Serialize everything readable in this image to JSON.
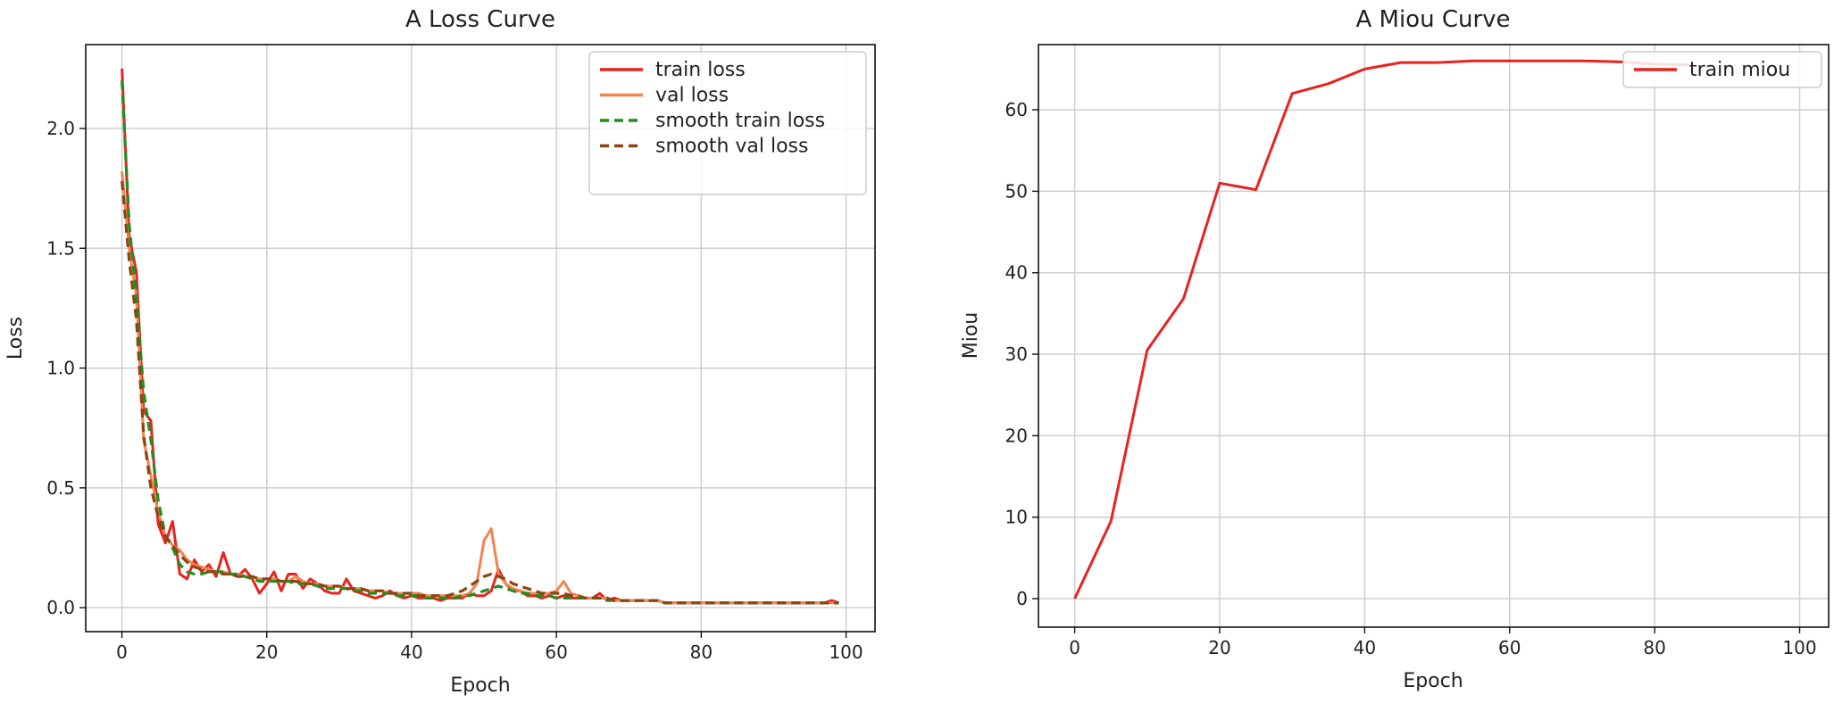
{
  "chart_data": [
    {
      "type": "line",
      "title": "A Loss Curve",
      "xlabel": "Epoch",
      "ylabel": "Loss",
      "xlim": [
        -5,
        104
      ],
      "ylim": [
        -0.1,
        2.35
      ],
      "xticks": [
        0,
        20,
        40,
        60,
        80,
        100
      ],
      "yticks": [
        0.0,
        0.5,
        1.0,
        1.5,
        2.0
      ],
      "ytick_labels": [
        "0.0",
        "0.5",
        "1.0",
        "1.5",
        "2.0"
      ],
      "grid": true,
      "legend_position": "top-right",
      "series": [
        {
          "name": "train loss",
          "color": "#e8231f",
          "style": "solid",
          "x": [
            0,
            1,
            2,
            3,
            4,
            5,
            6,
            7,
            8,
            9,
            10,
            11,
            12,
            13,
            14,
            15,
            16,
            17,
            18,
            19,
            20,
            21,
            22,
            23,
            24,
            25,
            26,
            27,
            28,
            29,
            30,
            31,
            32,
            33,
            34,
            35,
            36,
            37,
            38,
            39,
            40,
            41,
            42,
            43,
            44,
            45,
            46,
            47,
            48,
            49,
            50,
            51,
            52,
            53,
            54,
            55,
            56,
            57,
            58,
            59,
            60,
            61,
            62,
            63,
            64,
            65,
            66,
            67,
            68,
            69,
            70,
            71,
            72,
            73,
            74,
            75,
            76,
            77,
            78,
            79,
            80,
            81,
            82,
            83,
            84,
            85,
            86,
            87,
            88,
            89,
            90,
            91,
            92,
            93,
            94,
            95,
            96,
            97,
            98,
            99
          ],
          "values": [
            2.25,
            1.55,
            1.4,
            0.82,
            0.78,
            0.35,
            0.27,
            0.36,
            0.14,
            0.12,
            0.2,
            0.15,
            0.18,
            0.13,
            0.23,
            0.14,
            0.13,
            0.16,
            0.12,
            0.06,
            0.1,
            0.15,
            0.07,
            0.14,
            0.14,
            0.08,
            0.12,
            0.1,
            0.07,
            0.06,
            0.06,
            0.12,
            0.07,
            0.06,
            0.05,
            0.04,
            0.05,
            0.07,
            0.05,
            0.04,
            0.05,
            0.04,
            0.04,
            0.04,
            0.03,
            0.04,
            0.04,
            0.04,
            0.06,
            0.05,
            0.05,
            0.07,
            0.16,
            0.1,
            0.07,
            0.07,
            0.05,
            0.05,
            0.04,
            0.05,
            0.04,
            0.05,
            0.04,
            0.04,
            0.04,
            0.04,
            0.06,
            0.03,
            0.04,
            0.03,
            0.03,
            0.03,
            0.03,
            0.03,
            0.03,
            0.02,
            0.02,
            0.02,
            0.02,
            0.02,
            0.02,
            0.02,
            0.02,
            0.02,
            0.02,
            0.02,
            0.02,
            0.02,
            0.02,
            0.02,
            0.02,
            0.02,
            0.02,
            0.02,
            0.02,
            0.02,
            0.02,
            0.02,
            0.03,
            0.02
          ]
        },
        {
          "name": "val loss",
          "color": "#f4834f",
          "style": "solid",
          "x": [
            0,
            1,
            2,
            3,
            4,
            5,
            6,
            7,
            8,
            9,
            10,
            11,
            12,
            13,
            14,
            15,
            16,
            17,
            18,
            19,
            20,
            21,
            22,
            23,
            24,
            25,
            26,
            27,
            28,
            29,
            30,
            31,
            32,
            33,
            34,
            35,
            36,
            37,
            38,
            39,
            40,
            41,
            42,
            43,
            44,
            45,
            46,
            47,
            48,
            49,
            50,
            51,
            52,
            53,
            54,
            55,
            56,
            57,
            58,
            59,
            60,
            61,
            62,
            63,
            64,
            65,
            66,
            67,
            68,
            69,
            70,
            71,
            72,
            73,
            74,
            75,
            76,
            77,
            78,
            79,
            80,
            81,
            82,
            83,
            84,
            85,
            86,
            87,
            88,
            89,
            90,
            91,
            92,
            93,
            94,
            95,
            96,
            97,
            98,
            99
          ],
          "values": [
            1.82,
            1.5,
            1.3,
            0.7,
            0.55,
            0.4,
            0.3,
            0.26,
            0.24,
            0.2,
            0.18,
            0.17,
            0.16,
            0.15,
            0.15,
            0.14,
            0.14,
            0.13,
            0.13,
            0.12,
            0.12,
            0.12,
            0.11,
            0.11,
            0.13,
            0.11,
            0.1,
            0.1,
            0.09,
            0.09,
            0.09,
            0.08,
            0.08,
            0.08,
            0.07,
            0.07,
            0.07,
            0.06,
            0.06,
            0.06,
            0.06,
            0.06,
            0.05,
            0.05,
            0.05,
            0.05,
            0.05,
            0.05,
            0.06,
            0.1,
            0.28,
            0.33,
            0.14,
            0.1,
            0.08,
            0.07,
            0.06,
            0.06,
            0.06,
            0.06,
            0.07,
            0.11,
            0.06,
            0.05,
            0.04,
            0.04,
            0.04,
            0.04,
            0.03,
            0.03,
            0.03,
            0.03,
            0.03,
            0.03,
            0.03,
            0.02,
            0.02,
            0.02,
            0.02,
            0.02,
            0.02,
            0.02,
            0.02,
            0.02,
            0.02,
            0.02,
            0.02,
            0.02,
            0.02,
            0.02,
            0.02,
            0.02,
            0.02,
            0.02,
            0.02,
            0.02,
            0.02,
            0.02,
            0.02,
            0.02
          ]
        },
        {
          "name": "smooth train loss",
          "color": "#1f8f1f",
          "style": "dashed",
          "x": [
            0,
            1,
            2,
            3,
            4,
            5,
            6,
            7,
            8,
            9,
            10,
            11,
            12,
            13,
            14,
            15,
            16,
            17,
            18,
            19,
            20,
            21,
            22,
            23,
            24,
            25,
            26,
            27,
            28,
            29,
            30,
            31,
            32,
            33,
            34,
            35,
            36,
            37,
            38,
            39,
            40,
            41,
            42,
            43,
            44,
            45,
            46,
            47,
            48,
            49,
            50,
            51,
            52,
            53,
            54,
            55,
            56,
            57,
            58,
            59,
            60,
            61,
            62,
            63,
            64,
            65,
            66,
            67,
            68,
            69,
            70,
            71,
            72,
            73,
            74,
            75,
            76,
            77,
            78,
            79,
            80,
            81,
            82,
            83,
            84,
            85,
            86,
            87,
            88,
            89,
            90,
            91,
            92,
            93,
            94,
            95,
            96,
            97,
            98,
            99
          ],
          "values": [
            2.2,
            1.6,
            1.3,
            0.9,
            0.7,
            0.45,
            0.3,
            0.25,
            0.18,
            0.15,
            0.14,
            0.14,
            0.15,
            0.15,
            0.15,
            0.14,
            0.14,
            0.13,
            0.12,
            0.11,
            0.11,
            0.11,
            0.11,
            0.11,
            0.1,
            0.1,
            0.1,
            0.09,
            0.08,
            0.08,
            0.08,
            0.08,
            0.07,
            0.07,
            0.06,
            0.06,
            0.06,
            0.06,
            0.05,
            0.05,
            0.05,
            0.05,
            0.04,
            0.04,
            0.04,
            0.04,
            0.04,
            0.05,
            0.05,
            0.06,
            0.07,
            0.08,
            0.09,
            0.08,
            0.07,
            0.06,
            0.06,
            0.05,
            0.05,
            0.05,
            0.04,
            0.04,
            0.04,
            0.04,
            0.04,
            0.04,
            0.04,
            0.03,
            0.03,
            0.03,
            0.03,
            0.03,
            0.03,
            0.03,
            0.03,
            0.02,
            0.02,
            0.02,
            0.02,
            0.02,
            0.02,
            0.02,
            0.02,
            0.02,
            0.02,
            0.02,
            0.02,
            0.02,
            0.02,
            0.02,
            0.02,
            0.02,
            0.02,
            0.02,
            0.02,
            0.02,
            0.02,
            0.02,
            0.02,
            0.02
          ]
        },
        {
          "name": "smooth val loss",
          "color": "#8b4513",
          "style": "dashed",
          "x": [
            0,
            1,
            2,
            3,
            4,
            5,
            6,
            7,
            8,
            9,
            10,
            11,
            12,
            13,
            14,
            15,
            16,
            17,
            18,
            19,
            20,
            21,
            22,
            23,
            24,
            25,
            26,
            27,
            28,
            29,
            30,
            31,
            32,
            33,
            34,
            35,
            36,
            37,
            38,
            39,
            40,
            41,
            42,
            43,
            44,
            45,
            46,
            47,
            48,
            49,
            50,
            51,
            52,
            53,
            54,
            55,
            56,
            57,
            58,
            59,
            60,
            61,
            62,
            63,
            64,
            65,
            66,
            67,
            68,
            69,
            70,
            71,
            72,
            73,
            74,
            75,
            76,
            77,
            78,
            79,
            80,
            81,
            82,
            83,
            84,
            85,
            86,
            87,
            88,
            89,
            90,
            91,
            92,
            93,
            94,
            95,
            96,
            97,
            98,
            99
          ],
          "values": [
            1.78,
            1.45,
            1.2,
            0.72,
            0.5,
            0.38,
            0.3,
            0.26,
            0.22,
            0.19,
            0.17,
            0.16,
            0.15,
            0.15,
            0.14,
            0.14,
            0.13,
            0.13,
            0.13,
            0.12,
            0.12,
            0.12,
            0.11,
            0.11,
            0.11,
            0.1,
            0.1,
            0.1,
            0.09,
            0.09,
            0.09,
            0.08,
            0.08,
            0.08,
            0.07,
            0.07,
            0.07,
            0.06,
            0.06,
            0.06,
            0.06,
            0.05,
            0.05,
            0.05,
            0.05,
            0.05,
            0.06,
            0.07,
            0.09,
            0.11,
            0.13,
            0.14,
            0.13,
            0.12,
            0.1,
            0.09,
            0.08,
            0.07,
            0.06,
            0.06,
            0.06,
            0.06,
            0.05,
            0.05,
            0.04,
            0.04,
            0.04,
            0.04,
            0.03,
            0.03,
            0.03,
            0.03,
            0.03,
            0.03,
            0.03,
            0.02,
            0.02,
            0.02,
            0.02,
            0.02,
            0.02,
            0.02,
            0.02,
            0.02,
            0.02,
            0.02,
            0.02,
            0.02,
            0.02,
            0.02,
            0.02,
            0.02,
            0.02,
            0.02,
            0.02,
            0.02,
            0.02,
            0.02,
            0.02,
            0.02
          ]
        }
      ]
    },
    {
      "type": "line",
      "title": "A Miou Curve",
      "xlabel": "Epoch",
      "ylabel": "Miou",
      "xlim": [
        -5,
        104
      ],
      "ylim": [
        -3.5,
        68
      ],
      "xticks": [
        0,
        20,
        40,
        60,
        80,
        100
      ],
      "yticks": [
        0,
        10,
        20,
        30,
        40,
        50,
        60
      ],
      "ytick_labels": [
        "0",
        "10",
        "20",
        "30",
        "40",
        "50",
        "60"
      ],
      "grid": true,
      "legend_position": "top-right",
      "series": [
        {
          "name": "train miou",
          "color": "#e8231f",
          "style": "solid",
          "x": [
            0,
            5,
            10,
            15,
            20,
            25,
            30,
            35,
            40,
            45,
            50,
            55,
            60,
            65,
            70,
            75,
            80,
            85
          ],
          "values": [
            0,
            9.5,
            30.5,
            36.8,
            51.0,
            50.2,
            62.0,
            63.2,
            65.0,
            65.8,
            65.8,
            66.0,
            66.0,
            66.0,
            66.0,
            65.9,
            65.6,
            65.5
          ]
        }
      ]
    }
  ]
}
